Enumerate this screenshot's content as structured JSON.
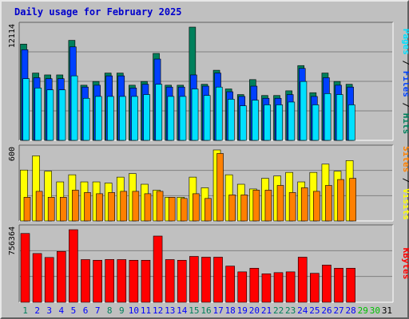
{
  "title": "Daily usage for February 2025",
  "colors": {
    "hits": "#00805c",
    "files": "#0040ff",
    "pages": "#00e0ff",
    "visits": "#ffff00",
    "sites": "#ff8000",
    "kbytes": "#ff0000",
    "weekend": "#00805c",
    "weekday": "#0000ff",
    "future": "#00c000",
    "none": "#000000"
  },
  "chart_data": [
    {
      "type": "bar",
      "panel": "top",
      "max_label": "12114",
      "ylim": [
        0,
        12114
      ],
      "axis_labels": {
        "pages": "Pages",
        "files": "Files",
        "hits": "Hits"
      },
      "days": [
        1,
        2,
        3,
        4,
        5,
        6,
        7,
        8,
        9,
        10,
        11,
        12,
        13,
        14,
        15,
        16,
        17,
        18,
        19,
        20,
        21,
        22,
        23,
        24,
        25,
        26,
        27,
        28
      ],
      "series": [
        {
          "name": "Hits",
          "values": [
            10300,
            7200,
            7000,
            7000,
            10700,
            5900,
            6300,
            7200,
            7200,
            5900,
            6300,
            9300,
            5900,
            5900,
            12114,
            6000,
            7500,
            5500,
            4900,
            6500,
            4800,
            4800,
            5300,
            8000,
            5100,
            7200,
            6300,
            6000
          ]
        },
        {
          "name": "Files",
          "values": [
            9700,
            6700,
            6600,
            6600,
            10000,
            5700,
            5900,
            6900,
            6900,
            5600,
            6000,
            8700,
            5700,
            5700,
            7000,
            5800,
            7200,
            5200,
            4700,
            5800,
            4500,
            4500,
            4900,
            7700,
            4700,
            6700,
            5900,
            5700
          ]
        },
        {
          "name": "Pages",
          "values": [
            6600,
            5600,
            5400,
            5400,
            6900,
            4500,
            4700,
            4700,
            4700,
            4700,
            4900,
            6000,
            4700,
            4700,
            5500,
            4800,
            5700,
            4400,
            3700,
            4300,
            3800,
            3800,
            4100,
            6300,
            3800,
            5000,
            4900,
            3800
          ]
        }
      ]
    },
    {
      "type": "bar",
      "panel": "middle",
      "max_label": "600",
      "ylim": [
        0,
        600
      ],
      "axis_labels": {
        "sites": "Sites",
        "visits": "Visits"
      },
      "days": [
        1,
        2,
        3,
        4,
        5,
        6,
        7,
        8,
        9,
        10,
        11,
        12,
        13,
        14,
        15,
        16,
        17,
        18,
        19,
        20,
        21,
        22,
        23,
        24,
        25,
        26,
        27,
        28
      ],
      "series": [
        {
          "name": "Visits",
          "values": [
            430,
            550,
            420,
            330,
            390,
            330,
            330,
            320,
            370,
            400,
            310,
            260,
            200,
            200,
            370,
            280,
            600,
            390,
            310,
            270,
            360,
            380,
            410,
            330,
            410,
            480,
            420,
            510
          ]
        },
        {
          "name": "Sites",
          "values": [
            200,
            250,
            200,
            200,
            260,
            240,
            230,
            240,
            250,
            250,
            230,
            250,
            200,
            190,
            230,
            190,
            570,
            220,
            220,
            260,
            260,
            300,
            240,
            280,
            250,
            300,
            350,
            360
          ]
        }
      ]
    },
    {
      "type": "bar",
      "panel": "bottom",
      "max_label": "756364",
      "ylim": [
        0,
        756364
      ],
      "axis_labels": {
        "kbytes": "KBytes"
      },
      "days": [
        1,
        2,
        3,
        4,
        5,
        6,
        7,
        8,
        9,
        10,
        11,
        12,
        13,
        14,
        15,
        16,
        17,
        18,
        19,
        20,
        21,
        22,
        23,
        24,
        25,
        26,
        27,
        28
      ],
      "series": [
        {
          "name": "KBytes",
          "values": [
            717000,
            508000,
            467000,
            530000,
            756364,
            445000,
            438000,
            446000,
            445000,
            438000,
            438000,
            690000,
            445000,
            438000,
            478000,
            470000,
            470000,
            377000,
            317000,
            355000,
            297000,
            309000,
            317000,
            470000,
            302000,
            388000,
            355000,
            355000
          ]
        }
      ]
    }
  ],
  "x_labels": [
    {
      "text": "1",
      "kind": "weekend"
    },
    {
      "text": "2",
      "kind": "weekday"
    },
    {
      "text": "3",
      "kind": "weekday"
    },
    {
      "text": "4",
      "kind": "weekday"
    },
    {
      "text": "5",
      "kind": "weekday"
    },
    {
      "text": "6",
      "kind": "weekday"
    },
    {
      "text": "7",
      "kind": "weekday"
    },
    {
      "text": "8",
      "kind": "weekend"
    },
    {
      "text": "9",
      "kind": "weekend"
    },
    {
      "text": "10",
      "kind": "weekday"
    },
    {
      "text": "11",
      "kind": "weekday"
    },
    {
      "text": "12",
      "kind": "weekday"
    },
    {
      "text": "13",
      "kind": "weekday"
    },
    {
      "text": "14",
      "kind": "weekday"
    },
    {
      "text": "15",
      "kind": "weekend"
    },
    {
      "text": "16",
      "kind": "weekend"
    },
    {
      "text": "17",
      "kind": "weekday"
    },
    {
      "text": "18",
      "kind": "weekday"
    },
    {
      "text": "19",
      "kind": "weekday"
    },
    {
      "text": "20",
      "kind": "weekday"
    },
    {
      "text": "21",
      "kind": "weekday"
    },
    {
      "text": "22",
      "kind": "weekend"
    },
    {
      "text": "23",
      "kind": "weekend"
    },
    {
      "text": "24",
      "kind": "weekday"
    },
    {
      "text": "25",
      "kind": "weekday"
    },
    {
      "text": "26",
      "kind": "weekday"
    },
    {
      "text": "27",
      "kind": "weekday"
    },
    {
      "text": "28",
      "kind": "weekday"
    },
    {
      "text": "29",
      "kind": "future"
    },
    {
      "text": "30",
      "kind": "future"
    },
    {
      "text": "31",
      "kind": "none"
    }
  ]
}
